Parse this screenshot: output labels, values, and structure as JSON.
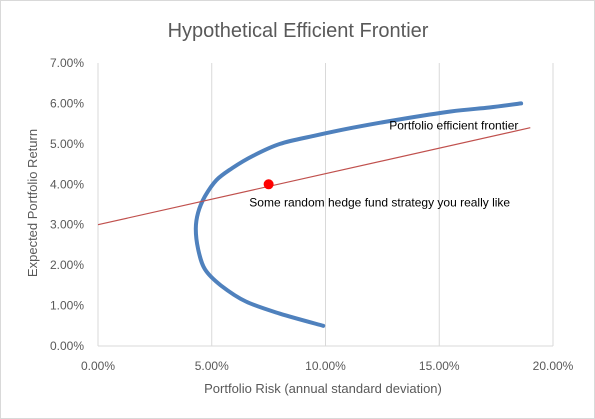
{
  "chart_data": {
    "type": "line",
    "title": "Hypothetical Efficient Frontier",
    "xlabel": "Portfolio Risk (annual standard deviation)",
    "ylabel": "Expected Portfolio Return",
    "xlim": [
      0,
      0.2
    ],
    "ylim": [
      0,
      0.07
    ],
    "x_ticks": [
      "0.00%",
      "5.00%",
      "10.00%",
      "15.00%",
      "20.00%"
    ],
    "y_ticks": [
      "0.00%",
      "1.00%",
      "2.00%",
      "3.00%",
      "4.00%",
      "5.00%",
      "6.00%",
      "7.00%"
    ],
    "grid": "vertical",
    "series": [
      {
        "name": "Portfolio efficient frontier",
        "color": "#4f81bd",
        "points": [
          [
            0.099,
            0.005
          ],
          [
            0.08,
            0.008
          ],
          [
            0.065,
            0.011
          ],
          [
            0.054,
            0.015
          ],
          [
            0.047,
            0.019
          ],
          [
            0.044,
            0.024
          ],
          [
            0.043,
            0.029
          ],
          [
            0.044,
            0.033
          ],
          [
            0.047,
            0.037
          ],
          [
            0.052,
            0.041
          ],
          [
            0.059,
            0.044
          ],
          [
            0.068,
            0.047
          ],
          [
            0.08,
            0.05
          ],
          [
            0.095,
            0.052
          ],
          [
            0.112,
            0.054
          ],
          [
            0.132,
            0.056
          ],
          [
            0.155,
            0.058
          ],
          [
            0.172,
            0.059
          ],
          [
            0.186,
            0.06
          ]
        ]
      },
      {
        "name": "",
        "color": "#c0504d",
        "points": [
          [
            0.0,
            0.03
          ],
          [
            0.19,
            0.054
          ]
        ]
      }
    ],
    "markers": [
      {
        "label": "Some random hedge fund strategy you really like",
        "x": 0.075,
        "y": 0.04,
        "color": "#ff0000"
      }
    ]
  }
}
